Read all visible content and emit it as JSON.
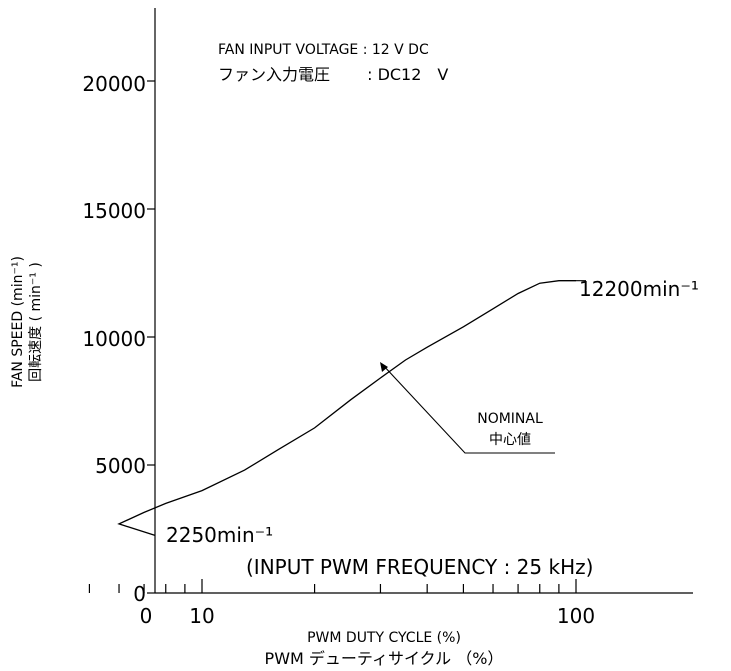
{
  "chart_data": {
    "type": "line",
    "title": "",
    "notes": {
      "voltage_en": "FAN INPUT VOLTAGE : 12 V DC",
      "voltage_jp": "ファン入力電圧　 　: DC12　V",
      "pwm_frequency": "(INPUT PWM FREQUENCY : 25 kHz)"
    },
    "xlabel": "PWM DUTY CYCLE (%)",
    "xlabel_jp": "PWM デューティサイクル （%）",
    "ylabel": "FAN SPEED (min⁻¹)",
    "ylabel_jp": "回転速度 ( min⁻¹ )",
    "x_scale": "log",
    "y_scale": "linear",
    "xlim": [
      0,
      100
    ],
    "ylim": [
      0,
      22000
    ],
    "x_ticks": [
      0,
      10,
      100
    ],
    "y_ticks": [
      0,
      5000,
      10000,
      15000,
      20000
    ],
    "series": [
      {
        "name": "NOMINAL 中心値",
        "x": [
          5,
          6,
          7,
          8,
          10,
          13,
          16,
          20,
          25,
          30,
          35,
          40,
          50,
          60,
          70,
          80,
          90,
          95,
          100
        ],
        "y": [
          2250,
          2700,
          3150,
          3500,
          4000,
          4800,
          5600,
          6450,
          7550,
          8400,
          9100,
          9600,
          10400,
          11100,
          11700,
          12100,
          12200,
          12200,
          12200
        ]
      }
    ],
    "annotations": {
      "start": "2250min⁻¹",
      "end": "12200min⁻¹",
      "nominal_en": "NOMINAL",
      "nominal_jp": "中心値"
    }
  }
}
